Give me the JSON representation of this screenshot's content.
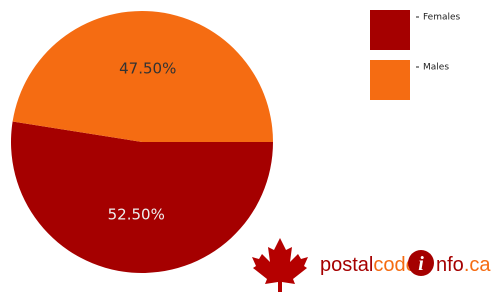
{
  "chart_data": {
    "type": "pie",
    "categories": [
      "Females",
      "Males"
    ],
    "values": [
      52.5,
      47.5
    ],
    "value_labels": [
      "52.50%",
      "47.50%"
    ],
    "colors": [
      "#a50000",
      "#f56c12"
    ],
    "label_colors": [
      "#eeeeee",
      "#333333"
    ],
    "start_angle": 0,
    "direction": "clockwise",
    "legend": "top-right"
  },
  "logo": {
    "parts": [
      "postal",
      "code",
      "i",
      "nfo",
      ".ca"
    ]
  }
}
